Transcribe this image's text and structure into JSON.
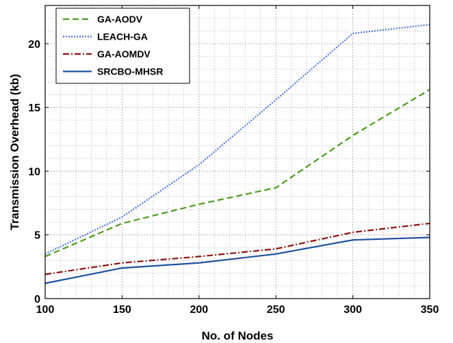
{
  "chart_data": {
    "type": "line",
    "title": "",
    "xlabel": "No. of Nodes",
    "ylabel": "Transmission Overhead (kb)",
    "xlim": [
      100,
      350
    ],
    "ylim": [
      0,
      23
    ],
    "x": [
      100,
      150,
      200,
      250,
      300,
      350
    ],
    "xticks": [
      "100",
      "150",
      "200",
      "250",
      "300",
      "350"
    ],
    "yticks": [
      "0",
      "5",
      "10",
      "15",
      "20"
    ],
    "grid": true,
    "legend_position": "top-left",
    "series": [
      {
        "name": "GA-AODV",
        "values": [
          3.3,
          5.9,
          7.4,
          8.7,
          12.8,
          16.4
        ],
        "color": "#4a9a1f",
        "style": "dashed"
      },
      {
        "name": "LEACH-GA",
        "values": [
          3.5,
          6.4,
          10.5,
          15.6,
          20.8,
          21.5
        ],
        "color": "#4a72d8",
        "style": "dotted"
      },
      {
        "name": "GA-AOMDV",
        "values": [
          1.9,
          2.8,
          3.3,
          3.9,
          5.2,
          5.9
        ],
        "color": "#8b0f0f",
        "style": "dashdot"
      },
      {
        "name": "SRCBO-MHSR",
        "values": [
          1.2,
          2.4,
          2.8,
          3.5,
          4.6,
          4.8
        ],
        "color": "#1f4fa0",
        "style": "solid"
      }
    ]
  }
}
